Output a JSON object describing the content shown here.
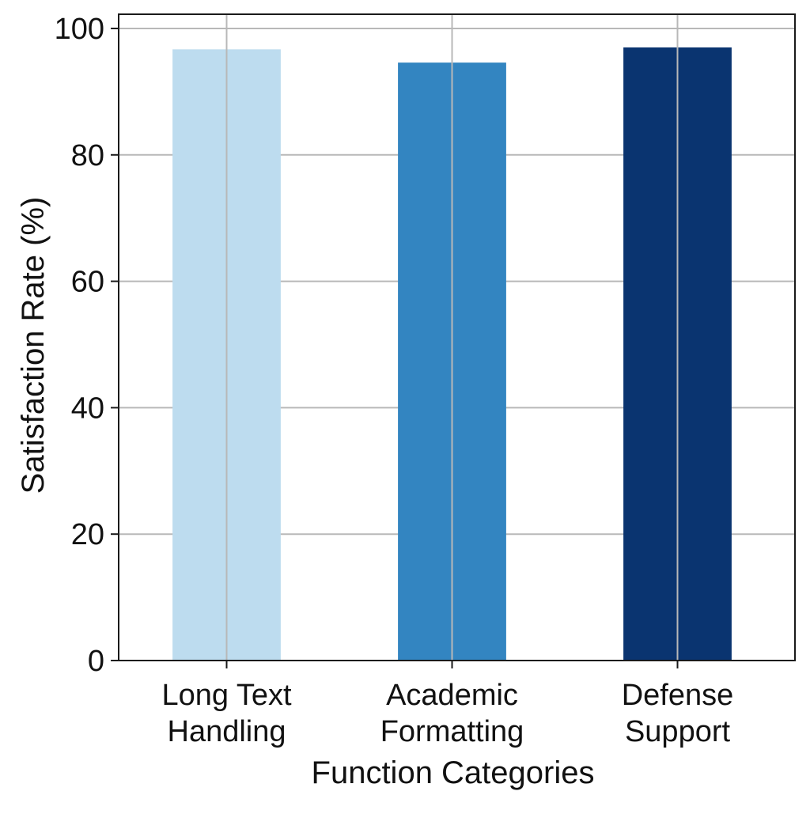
{
  "chart_data": {
    "type": "bar",
    "title": "",
    "xlabel": "Function Categories",
    "ylabel": "Satisfaction Rate (%)",
    "categories": [
      [
        "Long Text",
        "Handling"
      ],
      [
        "Academic",
        "Formatting"
      ],
      [
        "Defense",
        "Support"
      ]
    ],
    "series": [
      {
        "values": [
          96.7,
          94.6,
          97.0
        ]
      }
    ],
    "bar_colors": [
      "#bddcef",
      "#3385c1",
      "#0a3470"
    ],
    "ylim": [
      0,
      100
    ],
    "yticks": [
      0,
      20,
      40,
      60,
      80,
      100
    ],
    "grid": true,
    "grid_color": "#b8b8b8",
    "legend": false
  }
}
